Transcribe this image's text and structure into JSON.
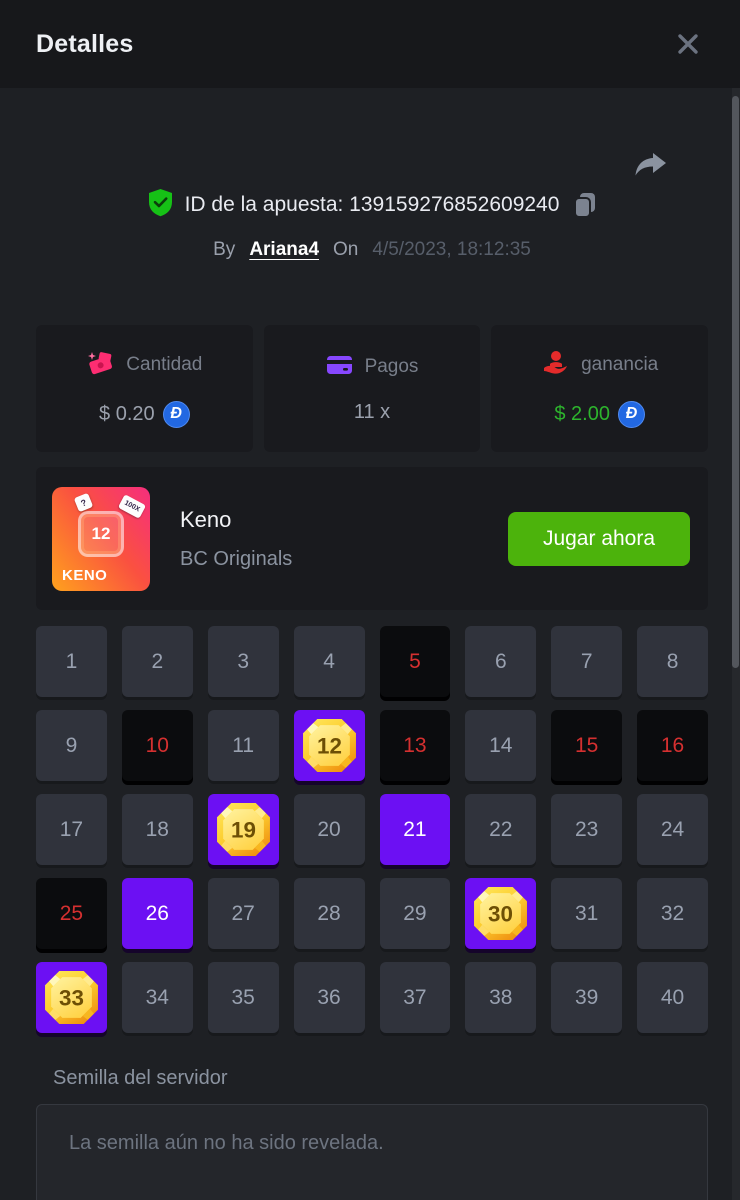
{
  "window": {
    "title": "Detalles"
  },
  "bet": {
    "id_text": "ID de la apuesta: 139159276852609240",
    "by_label": "By",
    "username": "Ariana4",
    "on_label": "On",
    "datetime": "4/5/2023, 18:12:35"
  },
  "stats": {
    "amount": {
      "label": "Cantidad",
      "value": "$ 0.20",
      "coin_symbol": "Đ"
    },
    "payout": {
      "label": "Pagos",
      "value": "11 x"
    },
    "profit": {
      "label": "ganancia",
      "value": "$ 2.00",
      "coin_symbol": "Đ"
    }
  },
  "game": {
    "title": "Keno",
    "provider": "BC Originals",
    "play_label": "Jugar ahora",
    "thumb_name": "KENO",
    "thumb_number": "12",
    "thumb_chip_question": "?",
    "thumb_chip_multiplier": "100X"
  },
  "keno": {
    "numbers": [
      1,
      2,
      3,
      4,
      5,
      6,
      7,
      8,
      9,
      10,
      11,
      12,
      13,
      14,
      15,
      16,
      17,
      18,
      19,
      20,
      21,
      22,
      23,
      24,
      25,
      26,
      27,
      28,
      29,
      30,
      31,
      32,
      33,
      34,
      35,
      36,
      37,
      38,
      39,
      40
    ],
    "miss": [
      5,
      10,
      13,
      15,
      16,
      25
    ],
    "hit": [
      12,
      19,
      30,
      33
    ],
    "selected": [
      21,
      26
    ]
  },
  "seed": {
    "label": "Semilla del servidor",
    "message": "La semilla aún no ha sido revelada."
  },
  "colors": {
    "accent_purple": "#6c10f3",
    "miss_red": "#d53030",
    "win_green": "#2db42d",
    "play_green": "#4cb30c",
    "verified_green": "#16c116",
    "coin_blue": "#2268e2",
    "panel": "#1e2024",
    "card": "#191a1e"
  }
}
